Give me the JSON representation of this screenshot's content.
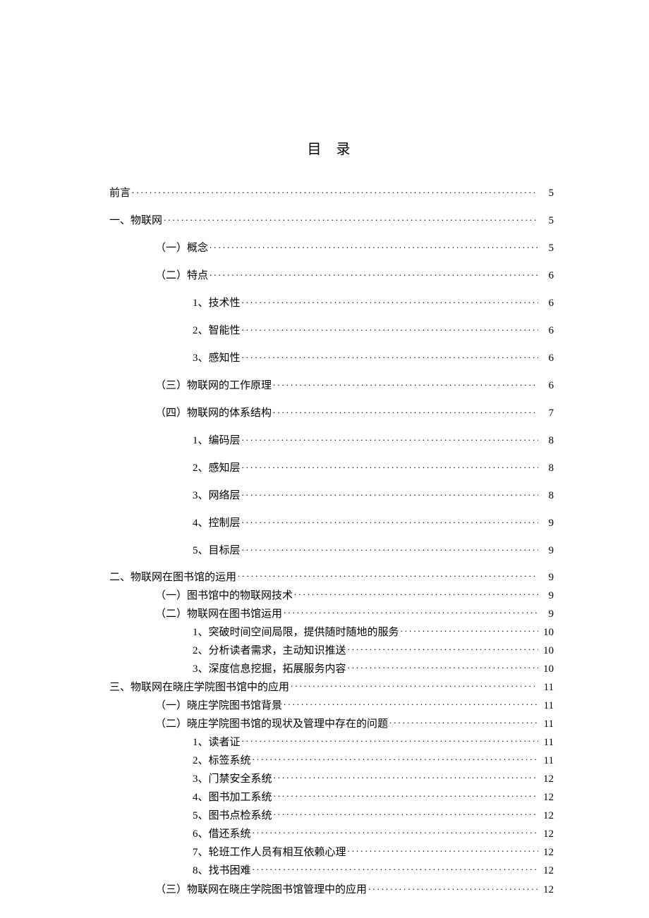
{
  "title": "目 录",
  "font_family": "SimSun",
  "title_fontsize": 20,
  "body_fontsize": 15,
  "background_color": "#ffffff",
  "text_color": "#000000",
  "entries": [
    {
      "label": "前言",
      "page": "5",
      "indent": 0,
      "spaced": true
    },
    {
      "label": "一、物联网",
      "page": "5",
      "indent": 0,
      "spaced": true
    },
    {
      "label": "（一）概念",
      "page": "5",
      "indent": 1,
      "spaced": true
    },
    {
      "label": "（二）特点",
      "page": "6",
      "indent": 1,
      "spaced": true
    },
    {
      "label": "1、技术性",
      "page": "6",
      "indent": 2,
      "spaced": true
    },
    {
      "label": "2、智能性",
      "page": "6",
      "indent": 2,
      "spaced": true
    },
    {
      "label": "3、感知性",
      "page": "6",
      "indent": 2,
      "spaced": true
    },
    {
      "label": "（三）物联网的工作原理",
      "page": "6",
      "indent": 1,
      "spaced": true
    },
    {
      "label": "（四）物联网的体系结构",
      "page": "7",
      "indent": 1,
      "spaced": true
    },
    {
      "label": "1、编码层",
      "page": "8",
      "indent": 2,
      "spaced": true
    },
    {
      "label": "2、感知层",
      "page": "8",
      "indent": 2,
      "spaced": true
    },
    {
      "label": "3、网络层",
      "page": "8",
      "indent": 2,
      "spaced": true
    },
    {
      "label": "4、控制层",
      "page": "9",
      "indent": 2,
      "spaced": true
    },
    {
      "label": "5、目标层",
      "page": "9",
      "indent": 2,
      "spaced": true
    },
    {
      "label": "二、物联网在图书馆的运用",
      "page": "9",
      "indent": 0,
      "spaced": false
    },
    {
      "label": "（一）图书馆中的物联网技术",
      "page": "9",
      "indent": 1,
      "spaced": false
    },
    {
      "label": "（二）物联网在图书馆运用",
      "page": "9",
      "indent": 1,
      "spaced": false
    },
    {
      "label": "1、突破时间空间局限，提供随时随地的服务",
      "page": "10",
      "indent": 2,
      "spaced": false
    },
    {
      "label": "2、分析读者需求，主动知识推送",
      "page": "10",
      "indent": 2,
      "spaced": false
    },
    {
      "label": "3、深度信息挖掘，拓展服务内容",
      "page": "10",
      "indent": 2,
      "spaced": false
    },
    {
      "label": "三、物联网在晓庄学院图书馆中的应用",
      "page": "11",
      "indent": 0,
      "spaced": false
    },
    {
      "label": "（一）晓庄学院图书馆背景",
      "page": "11",
      "indent": 1,
      "spaced": false
    },
    {
      "label": "（二）晓庄学院图书馆的现状及管理中存在的问题",
      "page": "11",
      "indent": 1,
      "spaced": false
    },
    {
      "label": "1、读者证",
      "page": "11",
      "indent": 2,
      "spaced": false
    },
    {
      "label": "2、标签系统",
      "page": "11",
      "indent": 2,
      "spaced": false
    },
    {
      "label": "3、门禁安全系统",
      "page": "12",
      "indent": 2,
      "spaced": false
    },
    {
      "label": "4、图书加工系统",
      "page": "12",
      "indent": 2,
      "spaced": false
    },
    {
      "label": "5、图书点检系统",
      "page": "12",
      "indent": 2,
      "spaced": false
    },
    {
      "label": "6、借还系统",
      "page": "12",
      "indent": 2,
      "spaced": false
    },
    {
      "label": "7、轮班工作人员有相互依赖心理",
      "page": "12",
      "indent": 2,
      "spaced": false
    },
    {
      "label": "8、找书困难",
      "page": "12",
      "indent": 2,
      "spaced": false
    },
    {
      "label": "（三）物联网在晓庄学院图书馆管理中的应用",
      "page": "12",
      "indent": 1,
      "spaced": true
    }
  ]
}
